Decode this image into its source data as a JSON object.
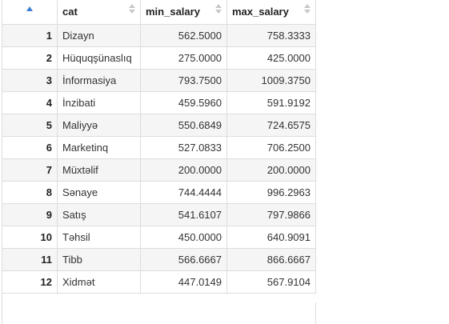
{
  "table": {
    "columns": [
      {
        "label": "",
        "sortable": true,
        "sort_state": "ascending"
      },
      {
        "label": "cat",
        "sortable": true
      },
      {
        "label": "min_salary",
        "sortable": true
      },
      {
        "label": "max_salary",
        "sortable": true
      }
    ],
    "rows": [
      {
        "n": "1",
        "cat": "Dizayn",
        "min_salary": "562.5000",
        "max_salary": "758.3333"
      },
      {
        "n": "2",
        "cat": "Hüquqşünaslıq",
        "min_salary": "275.0000",
        "max_salary": "425.0000"
      },
      {
        "n": "3",
        "cat": "İnformasiya",
        "min_salary": "793.7500",
        "max_salary": "1009.3750"
      },
      {
        "n": "4",
        "cat": "İnzibati",
        "min_salary": "459.5960",
        "max_salary": "591.9192"
      },
      {
        "n": "5",
        "cat": "Maliyyə",
        "min_salary": "550.6849",
        "max_salary": "724.6575"
      },
      {
        "n": "6",
        "cat": "Marketinq",
        "min_salary": "527.0833",
        "max_salary": "706.2500"
      },
      {
        "n": "7",
        "cat": "Müxtəlif",
        "min_salary": "200.0000",
        "max_salary": "200.0000"
      },
      {
        "n": "8",
        "cat": "Sənaye",
        "min_salary": "744.4444",
        "max_salary": "996.2963"
      },
      {
        "n": "9",
        "cat": "Satış",
        "min_salary": "541.6107",
        "max_salary": "797.9866"
      },
      {
        "n": "10",
        "cat": "Təhsil",
        "min_salary": "450.0000",
        "max_salary": "640.9091"
      },
      {
        "n": "11",
        "cat": "Tibb",
        "min_salary": "566.6667",
        "max_salary": "866.6667"
      },
      {
        "n": "12",
        "cat": "Xidmət",
        "min_salary": "447.0149",
        "max_salary": "567.9104"
      }
    ]
  },
  "icons": {
    "sort_active": "sort-ascending-icon",
    "sort_inactive": "sort-both-icon"
  },
  "colors": {
    "sort_active": "#3a7fd5",
    "sort_inactive": "#c8c8c8",
    "row_stripe": "#f5f5f5",
    "border": "#dddddd"
  }
}
